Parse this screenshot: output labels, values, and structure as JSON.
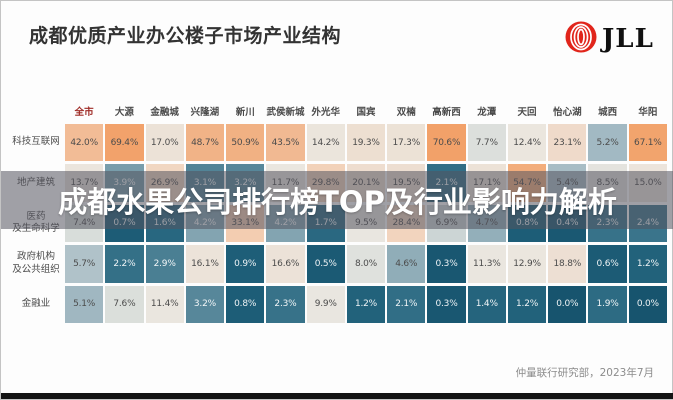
{
  "header": {
    "title": "成都优质产业办公楼子市场产业结构",
    "logo_text": "JLL",
    "logo_color": "#e1251b"
  },
  "overlay": {
    "text": "成都水果公司排行榜TOP及行业影响力解析"
  },
  "footer": {
    "source": "仲量联行研究部，2023年7月"
  },
  "chart_data": {
    "type": "heatmap",
    "title": "成都优质产业办公楼子市场产业结构",
    "value_format": "percent",
    "legend_position": "none",
    "columns": [
      "全市",
      "大源",
      "金融城",
      "兴隆湖",
      "新川",
      "武侯新城",
      "外光华",
      "国宾",
      "双楠",
      "高新西",
      "龙潭",
      "天回",
      "怡心湖",
      "城西",
      "华阳"
    ],
    "rows": [
      {
        "label": "科技互联网",
        "values": [
          42.0,
          69.4,
          17.0,
          48.7,
          50.9,
          43.5,
          14.2,
          19.3,
          17.3,
          70.6,
          7.7,
          12.4,
          23.1,
          5.2,
          67.1
        ]
      },
      {
        "label": "地产建筑",
        "values": [
          13.7,
          3.9,
          26.9,
          3.1,
          3.2,
          11.7,
          29.8,
          20.1,
          19.5,
          2.1,
          17.1,
          54.7,
          5.4,
          8.5,
          15.0
        ]
      },
      {
        "label": "医药\n及生命科学",
        "values": [
          7.4,
          0.7,
          1.6,
          4.2,
          33.1,
          4.2,
          1.7,
          9.5,
          28.4,
          6.9,
          4.7,
          0.8,
          0.4,
          2.3,
          2.4
        ]
      },
      {
        "label": "政府机构\n及公共组织",
        "values": [
          5.7,
          2.2,
          2.9,
          16.1,
          0.9,
          16.6,
          0.5,
          8.0,
          4.6,
          0.3,
          11.3,
          12.9,
          18.8,
          0.6,
          1.2
        ]
      },
      {
        "label": "金融业",
        "values": [
          5.1,
          7.6,
          11.4,
          3.2,
          0.8,
          2.3,
          9.9,
          1.2,
          2.1,
          0.3,
          1.4,
          1.2,
          0.0,
          1.9,
          0.0
        ]
      }
    ],
    "colors": {
      "low": "#17546e",
      "mid": "#ece7e0",
      "high": "#f2a169",
      "header_highlight": "#9e2a25"
    }
  }
}
